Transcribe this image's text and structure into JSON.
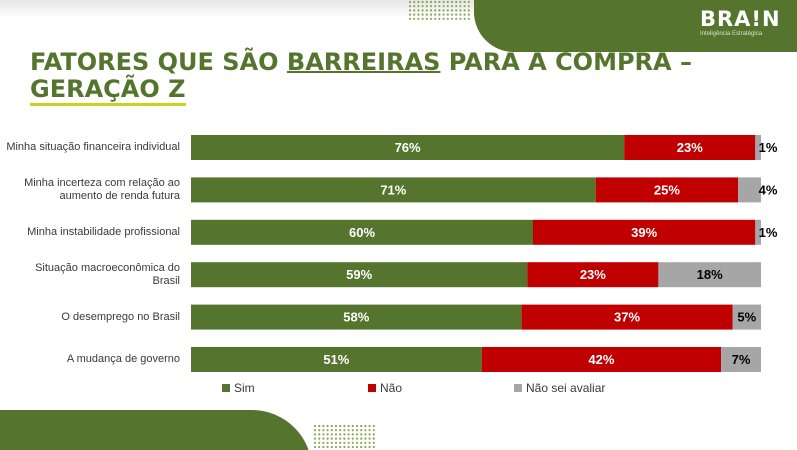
{
  "logo": {
    "text": "BRA!N",
    "subtitle": "Inteligência Estratégica"
  },
  "title": {
    "line1_prefix": "FATORES QUE SÃO ",
    "line1_underlined": "BARREIRAS",
    "line1_suffix": " PARA A COMPRA –",
    "line2": "GERAÇÃO Z"
  },
  "colors": {
    "sim": "#55752e",
    "nao": "#c00000",
    "nao_sei": "#a6a6a6",
    "brand": "#55752e",
    "accent": "#c7d321"
  },
  "chart_data": {
    "type": "bar",
    "orientation": "horizontal",
    "stacked": true,
    "categories": [
      "Minha situação financeira individual",
      "Minha incerteza com relação ao aumento de renda futura",
      "Minha instabilidade profissional",
      "Situação macroeconômica do Brasil",
      "O desemprego no Brasil",
      "A mudança de governo"
    ],
    "series": [
      {
        "name": "Sim",
        "values": [
          76,
          71,
          60,
          59,
          58,
          51
        ],
        "labels": [
          "76%",
          "71%",
          "60%",
          "59%",
          "58%",
          "51%"
        ]
      },
      {
        "name": "Não",
        "values": [
          23,
          25,
          39,
          23,
          37,
          42
        ],
        "labels": [
          "23%",
          "25%",
          "39%",
          "23%",
          "37%",
          "42%"
        ]
      },
      {
        "name": "Não sei avaliar",
        "values": [
          1,
          4,
          1,
          18,
          5,
          7
        ],
        "labels": [
          "1%",
          "4%",
          "1%",
          "18%",
          "5%",
          "7%"
        ]
      }
    ],
    "xlim": [
      0,
      100
    ],
    "legend": "bottom",
    "grid": false
  }
}
